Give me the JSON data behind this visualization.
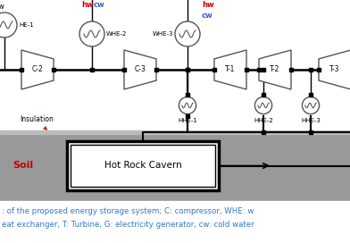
{
  "bg_color": "#f2f2f2",
  "soil_color": "#999999",
  "white": "#ffffff",
  "black": "#000000",
  "red": "#cc0000",
  "blue": "#3366cc",
  "caption_color": "#3377cc",
  "caption_line1": ": of the proposed energy storage system; C: compressor, WHE: w",
  "caption_line2": "eat exchanger, T: Turbine, G: electricity generator, cw: cold water",
  "soil_label": "Soil",
  "insulation_label": "Insulation",
  "cavern_label": "Hot Rock Cavern"
}
